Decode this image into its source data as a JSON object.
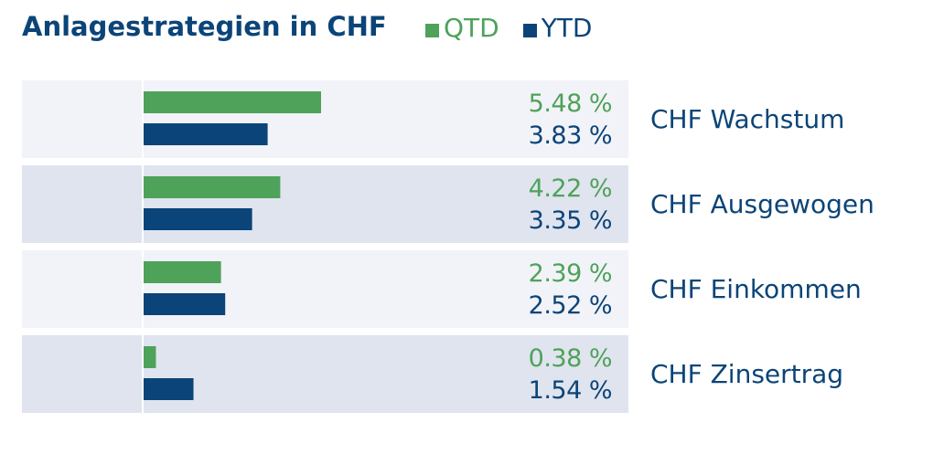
{
  "title": "Anlagestrategien in CHF",
  "colors": {
    "qtd": "#4ea25a",
    "ytd": "#0b4478",
    "band_light": "#f2f3f8",
    "band_dark": "#e0e4ef",
    "axis": "#ffffff"
  },
  "legend": [
    {
      "label": "QTD",
      "color": "#4ea25a"
    },
    {
      "label": "YTD",
      "color": "#0b4478"
    }
  ],
  "chart_data": {
    "type": "bar",
    "orientation": "horizontal",
    "categories": [
      "CHF Wachstum",
      "CHF Ausgewogen",
      "CHF Einkommen",
      "CHF Zinsertrag"
    ],
    "series": [
      {
        "name": "QTD",
        "values": [
          5.48,
          4.22,
          2.39,
          0.38
        ],
        "labels": [
          "5.48 %",
          "4.22 %",
          "2.39 %",
          "0.38 %"
        ]
      },
      {
        "name": "YTD",
        "values": [
          3.83,
          3.35,
          2.52,
          1.54
        ],
        "labels": [
          "3.83 %",
          "3.35 %",
          "2.52 %",
          "1.54 %"
        ]
      }
    ],
    "xlim": [
      0,
      5.48
    ],
    "legend_position": "top",
    "grid": false
  }
}
